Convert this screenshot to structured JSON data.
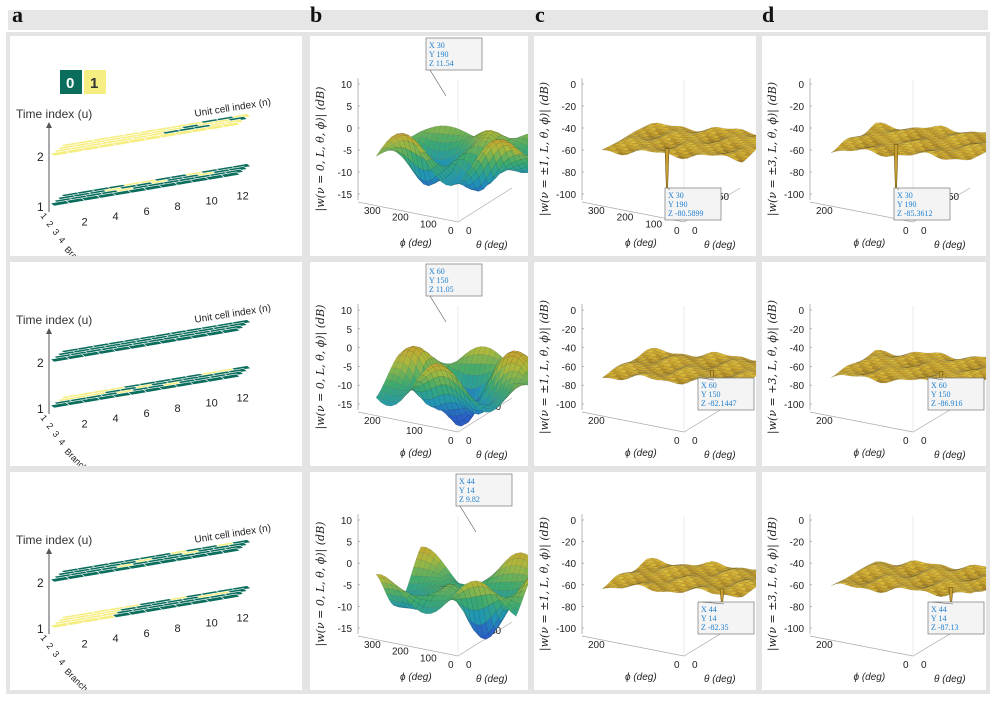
{
  "panel_letters": [
    "a",
    "b",
    "c",
    "d"
  ],
  "legend": {
    "zero": "0",
    "one": "1",
    "zero_color": "#0b6e5c",
    "one_color": "#f6ee82"
  },
  "colors": {
    "teal": "#0b6e5c",
    "yellow": "#f6ee82",
    "tip": "#1f7fd0"
  },
  "col_a": {
    "time_label": "Time index (u)",
    "unit_label": "Unit cell index (n)",
    "branch_label": "Branch index (m)",
    "time_ticks": [
      "2",
      "1"
    ],
    "branch_ticks": [
      "1",
      "2",
      "3",
      "4"
    ],
    "unit_ticks": [
      "2",
      "4",
      "6",
      "8",
      "10",
      "12"
    ]
  },
  "col_b": {
    "zlabel": "|w(ν = 0, L, θ, ϕ)| (dB)",
    "phi_label": "ϕ (deg)",
    "theta_label": "θ (deg)",
    "rows": [
      {
        "zticks": [
          "10",
          "5",
          "0",
          "-5",
          "-10",
          "-15"
        ],
        "phiticks": [
          "300",
          "200",
          "100",
          "0"
        ],
        "thetaticks": [
          "0"
        ],
        "tip": {
          "x": "X 30",
          "y": "Y 190",
          "z": "Z 11.54"
        }
      },
      {
        "zticks": [
          "10",
          "5",
          "0",
          "-5",
          "-10",
          "-15"
        ],
        "phiticks": [
          "200",
          "100",
          "0"
        ],
        "thetaticks": [
          "0",
          "50"
        ],
        "tip": {
          "x": "X 60",
          "y": "Y 150",
          "z": "Z 11.05"
        }
      },
      {
        "zticks": [
          "10",
          "5",
          "0",
          "-5",
          "-10",
          "-15"
        ],
        "phiticks": [
          "300",
          "200",
          "100",
          "0"
        ],
        "thetaticks": [
          "0",
          "50"
        ],
        "tip": {
          "x": "X 44",
          "y": "Y 14",
          "z": "Z 9.82"
        }
      }
    ]
  },
  "col_c": {
    "zlabel": "|w(ν = ±1, L, θ, ϕ)| (dB)",
    "phi_label": "ϕ (deg)",
    "theta_label": "θ (deg)",
    "rows": [
      {
        "zticks": [
          "0",
          "-20",
          "-40",
          "-60",
          "-80",
          "-100"
        ],
        "phiticks": [
          "300",
          "200",
          "100",
          "0"
        ],
        "thetaticks": [
          "0",
          "50"
        ],
        "tip": {
          "x": "X 30",
          "y": "Y 190",
          "z": "Z -80.5899"
        }
      },
      {
        "zticks": [
          "0",
          "-20",
          "-40",
          "-60",
          "-80",
          "-100"
        ],
        "phiticks": [
          "200",
          "0"
        ],
        "thetaticks": [
          "0",
          "50"
        ],
        "tip": {
          "x": "X 60",
          "y": "Y 150",
          "z": "Z -82.1447"
        }
      },
      {
        "zticks": [
          "0",
          "-20",
          "-40",
          "-60",
          "-80",
          "-100"
        ],
        "phiticks": [
          "200",
          "0"
        ],
        "thetaticks": [
          "0",
          "50"
        ],
        "tip": {
          "x": "X 44",
          "y": "Y 14",
          "z": "Z -82.35"
        }
      }
    ]
  },
  "col_d": {
    "zlabel_row1": "|w(ν = ±3, L, θ, ϕ)| (dB)",
    "zlabel_row2": "|w(ν = +3, L, θ, ϕ)| (dB)",
    "zlabel_row3": "|w(ν = ±3, L, θ, ϕ)| (dB)",
    "phi_label": "ϕ (deg)",
    "theta_label": "θ (deg)",
    "rows": [
      {
        "zticks": [
          "0",
          "-20",
          "-40",
          "-60",
          "-80",
          "-100"
        ],
        "phiticks": [
          "200",
          "0"
        ],
        "thetaticks": [
          "0",
          "50"
        ],
        "tip": {
          "x": "X 30",
          "y": "Y 190",
          "z": "Z -85.3612"
        }
      },
      {
        "zticks": [
          "0",
          "-20",
          "-40",
          "-60",
          "-80",
          "-100"
        ],
        "phiticks": [
          "200",
          "0"
        ],
        "thetaticks": [
          "0",
          "50"
        ],
        "tip": {
          "x": "X 60",
          "y": "Y 150",
          "z": "Z -86.916"
        }
      },
      {
        "zticks": [
          "0",
          "-20",
          "-40",
          "-60",
          "-80",
          "-100"
        ],
        "phiticks": [
          "200",
          "0"
        ],
        "thetaticks": [
          "0",
          "50"
        ],
        "tip": {
          "x": "X 44",
          "y": "Y 14",
          "z": "Z -87.13"
        }
      }
    ]
  }
}
